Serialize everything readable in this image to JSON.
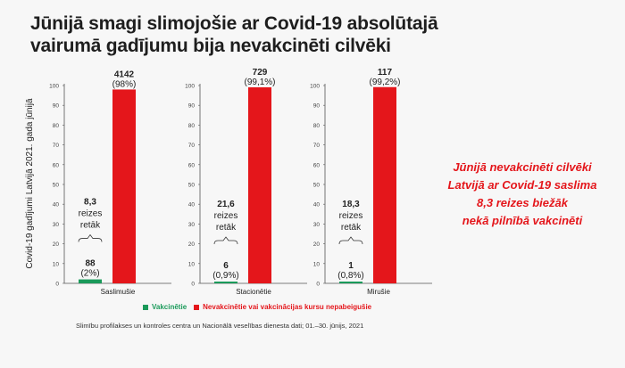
{
  "title": "Jūnijā smagi slimojošie ar Covid-19 absolūtajā vairumā gadījumu bija nevakcinēti cilvēki",
  "right_note": {
    "line1": "Jūnijā nevakcinēti cilvēki",
    "line2": "Latvijā ar Covid-19 saslima",
    "line3": "8,3 reizes biežāk",
    "line4": "nekā pilnībā vakcinēti"
  },
  "legend": {
    "vaccinated": "Vakcinētie",
    "unvaccinated": "Nevakcinētie vai vakcinācijas kursu nepabeigušie"
  },
  "source": "Slimību profilakses un kontroles centra un Nacionālā veselības dienesta dati; 01.–30. jūnijs, 2021",
  "colors": {
    "vaccinated": "#1a9a5a",
    "unvaccinated": "#e4161b"
  },
  "chart_data": {
    "type": "bar",
    "ylabel": "Covid-19 gadījumi Latvijā 2021. gada jūnijā",
    "ylim": [
      0,
      100
    ],
    "yticks": [
      0,
      10,
      20,
      30,
      40,
      50,
      60,
      70,
      80,
      90,
      100
    ],
    "legend_position": "bottom",
    "groups": [
      {
        "category": "Saslimušie",
        "vaccinated": {
          "value": 2,
          "count": "88",
          "pct": "(2%)"
        },
        "unvaccinated": {
          "value": 98,
          "count": "4142",
          "pct": "(98%)"
        },
        "ratio": [
          "8,3",
          "reizes",
          "retāk"
        ]
      },
      {
        "category": "Stacionētie",
        "vaccinated": {
          "value": 0.9,
          "count": "6",
          "pct": "(0,9%)"
        },
        "unvaccinated": {
          "value": 99.1,
          "count": "729",
          "pct": "(99,1%)"
        },
        "ratio": [
          "21,6",
          "reizes",
          "retāk"
        ]
      },
      {
        "category": "Mirušie",
        "vaccinated": {
          "value": 0.8,
          "count": "1",
          "pct": "(0,8%)"
        },
        "unvaccinated": {
          "value": 99.2,
          "count": "117",
          "pct": "(99,2%)"
        },
        "ratio": [
          "18,3",
          "reizes",
          "retāk"
        ]
      }
    ]
  }
}
